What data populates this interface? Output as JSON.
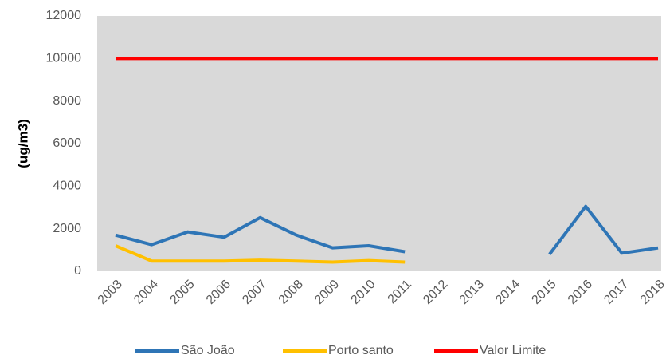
{
  "chart_data": {
    "type": "line",
    "y_label": "(ug/m3)",
    "categories": [
      "2003",
      "2004",
      "2005",
      "2006",
      "2007",
      "2008",
      "2009",
      "2010",
      "2011",
      "2012",
      "2013",
      "2014",
      "2015",
      "2016",
      "2017",
      "2018"
    ],
    "series": [
      {
        "name": "São João",
        "color": "#2e75b6",
        "values": [
          1700,
          1250,
          1850,
          1600,
          2520,
          1700,
          1100,
          1200,
          920,
          null,
          null,
          null,
          800,
          3050,
          850,
          1100
        ]
      },
      {
        "name": "Porto santo",
        "color": "#ffc000",
        "values": [
          1200,
          480,
          480,
          480,
          520,
          480,
          430,
          500,
          430,
          null,
          null,
          null,
          null,
          null,
          null,
          null
        ]
      },
      {
        "name": "Valor Limite",
        "color": "#ff0000",
        "values": [
          10000,
          10000,
          10000,
          10000,
          10000,
          10000,
          10000,
          10000,
          10000,
          10000,
          10000,
          10000,
          10000,
          10000,
          10000,
          10000
        ]
      }
    ],
    "ylim": [
      0,
      12000
    ],
    "yticks": [
      0,
      2000,
      4000,
      6000,
      8000,
      10000,
      12000
    ],
    "plot_background": "#d9d9d9"
  }
}
